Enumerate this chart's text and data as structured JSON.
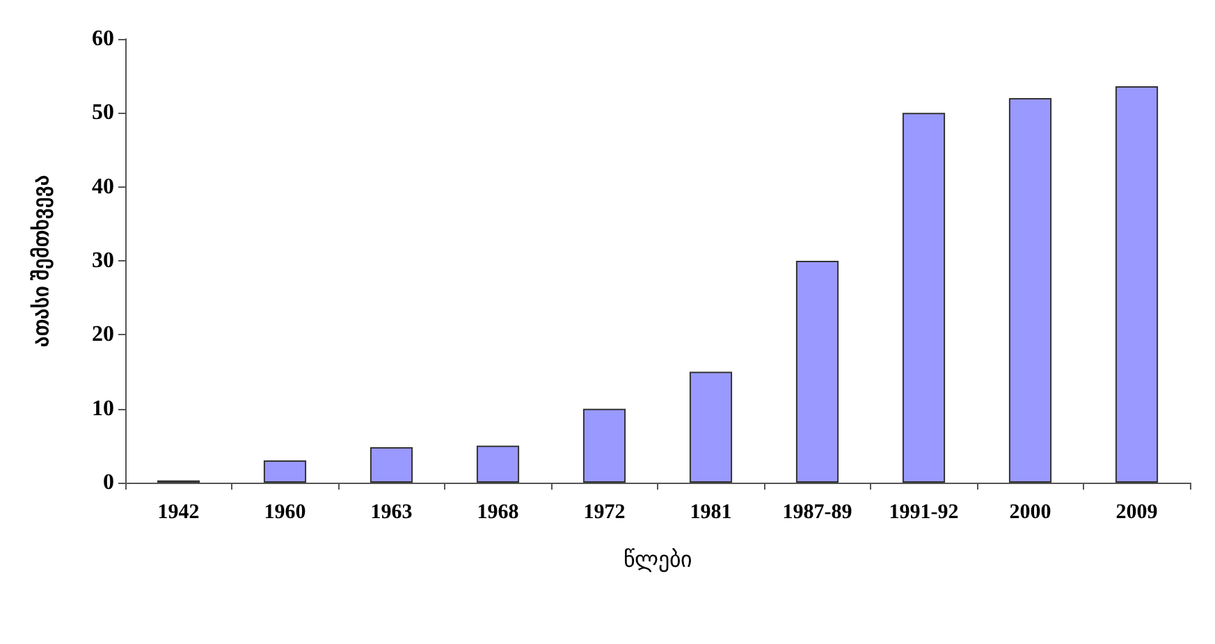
{
  "chart_data": {
    "type": "bar",
    "xlabel": "წლები",
    "ylabel": "ათასი შემთხვევა",
    "categories": [
      "1942",
      "1960",
      "1963",
      "1968",
      "1972",
      "1981",
      "1987-89",
      "1991-92",
      "2000",
      "2009"
    ],
    "values": [
      0.3,
      3,
      4.8,
      5,
      10,
      15,
      30,
      50,
      52,
      53.6
    ],
    "color": "#9999ff",
    "ylim": [
      0,
      60
    ],
    "yticks": [
      0,
      10,
      20,
      30,
      40,
      50,
      60
    ],
    "grid": false
  }
}
